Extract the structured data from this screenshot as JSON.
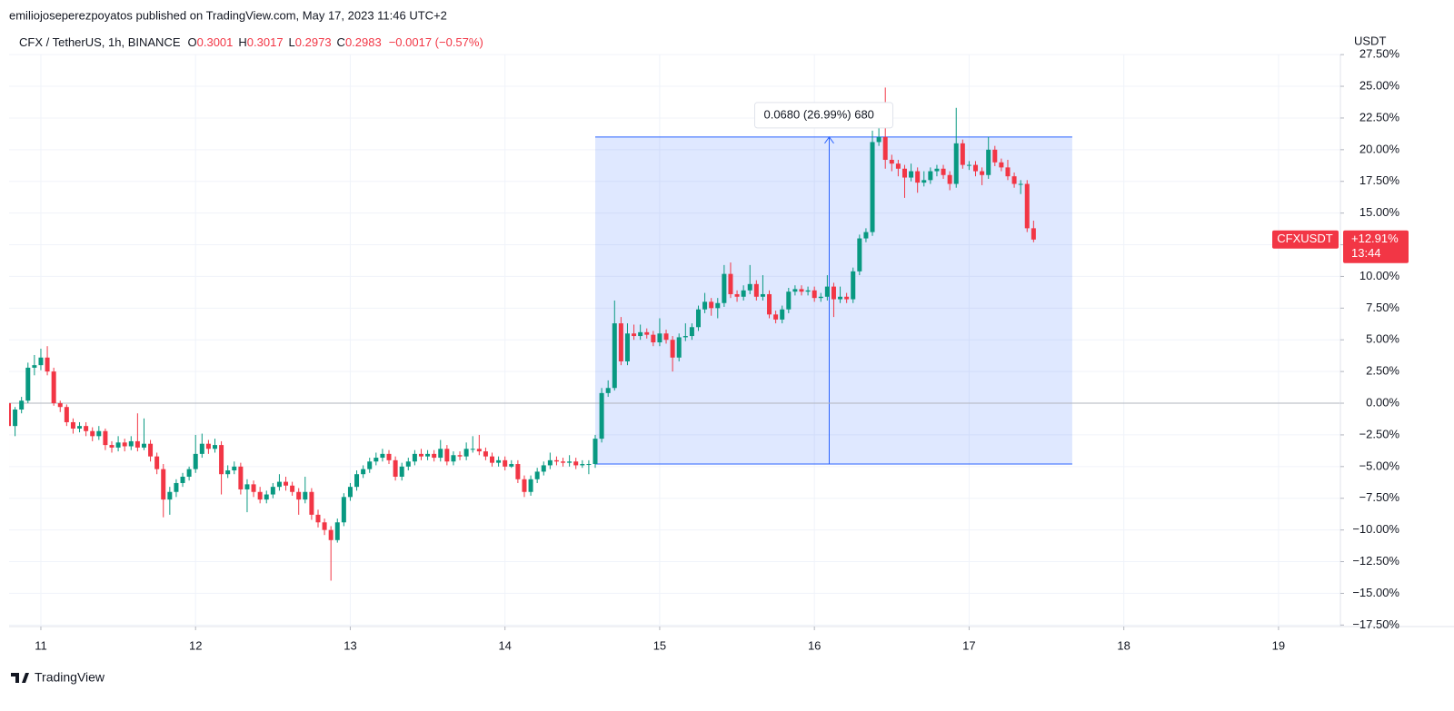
{
  "header": "emiliojoseperezpoyatos published on TradingView.com, May 17, 2023 11:46 UTC+2",
  "footer": "TradingView",
  "chart_data": {
    "type": "candlestick",
    "symbol": "CFX / TetherUS, 1h, BINANCE",
    "ohlc": [
      {
        "label": "O",
        "value": 0.3001
      },
      {
        "label": "H",
        "value": 0.3017
      },
      {
        "label": "L",
        "value": 0.2973
      },
      {
        "label": "C",
        "value": 0.2983
      }
    ],
    "change": "−0.0017 (−0.57%)",
    "unit": "USDT",
    "up_color": "#089981",
    "down_color": "#f23645",
    "grid": true,
    "xlim": [
      19.07,
      225.6
    ],
    "xticks": [
      {
        "value": 24,
        "label": "11"
      },
      {
        "value": 48,
        "label": "12"
      },
      {
        "value": 72,
        "label": "13"
      },
      {
        "value": 96,
        "label": "14"
      },
      {
        "value": 120,
        "label": "15"
      },
      {
        "value": 144,
        "label": "16"
      },
      {
        "value": 168,
        "label": "17"
      },
      {
        "value": 192,
        "label": "18"
      },
      {
        "value": 216,
        "label": "19"
      }
    ],
    "ylim": [
      -17.62,
      27.51
    ],
    "yticks": [
      {
        "value": 27.5,
        "label": "27.50%"
      },
      {
        "value": 25,
        "label": "25.00%"
      },
      {
        "value": 22.5,
        "label": "22.50%"
      },
      {
        "value": 20,
        "label": "20.00%"
      },
      {
        "value": 17.5,
        "label": "17.50%"
      },
      {
        "value": 15,
        "label": "15.00%"
      },
      {
        "value": 12.5,
        "label": "12.50%"
      },
      {
        "value": 10,
        "label": "10.00%"
      },
      {
        "value": 7.5,
        "label": "7.50%"
      },
      {
        "value": 5,
        "label": "5.00%"
      },
      {
        "value": 2.5,
        "label": "2.50%"
      },
      {
        "value": 0,
        "label": "0.00%"
      },
      {
        "value": -2.5,
        "label": "−2.50%"
      },
      {
        "value": -5,
        "label": "−5.00%"
      },
      {
        "value": -7.5,
        "label": "−7.50%"
      },
      {
        "value": -10,
        "label": "−10.00%"
      },
      {
        "value": -12.5,
        "label": "−12.50%"
      },
      {
        "value": -15,
        "label": "−15.00%"
      },
      {
        "value": -17.5,
        "label": "−17.50%"
      }
    ],
    "baseline": 0,
    "last": {
      "name": "CFXUSDT",
      "value": 12.91,
      "value_label": "+12.91%",
      "countdown": "13:44"
    },
    "range_box": {
      "from": 110,
      "to": 184,
      "low": -4.8,
      "high": 21.0,
      "arrow_at": 146.3,
      "label": "0.0680 (26.99%) 680",
      "color": "#2962ff"
    },
    "x": [
      19,
      20,
      21,
      22,
      23,
      24,
      25,
      26,
      27,
      28,
      29,
      30,
      31,
      32,
      33,
      34,
      35,
      36,
      37,
      38,
      39,
      40,
      41,
      42,
      43,
      44,
      45,
      46,
      47,
      48,
      49,
      50,
      51,
      52,
      53,
      54,
      55,
      56,
      57,
      58,
      59,
      60,
      61,
      62,
      63,
      64,
      65,
      66,
      67,
      68,
      69,
      70,
      71,
      72,
      73,
      74,
      75,
      76,
      77,
      78,
      79,
      80,
      81,
      82,
      83,
      84,
      85,
      86,
      87,
      88,
      89,
      90,
      91,
      92,
      93,
      94,
      95,
      96,
      97,
      98,
      99,
      100,
      101,
      102,
      103,
      104,
      105,
      106,
      107,
      108,
      109,
      110,
      111,
      112,
      113,
      114,
      115,
      116,
      117,
      118,
      119,
      120,
      121,
      122,
      123,
      124,
      125,
      126,
      127,
      128,
      129,
      130,
      131,
      132,
      133,
      134,
      135,
      136,
      137,
      138,
      139,
      140,
      141,
      142,
      143,
      144,
      145,
      146,
      147,
      148,
      149,
      150,
      151,
      152,
      153,
      154,
      155,
      156,
      157,
      158,
      159,
      160,
      161,
      162,
      163,
      164,
      165,
      166,
      167,
      168,
      169,
      170,
      171,
      172,
      173,
      174,
      175,
      176,
      177,
      178
    ],
    "candles": [
      [
        0,
        0.3,
        -6.3,
        -1.8
      ],
      [
        -1.8,
        -0.3,
        -2.6,
        -0.5
      ],
      [
        -0.5,
        0.5,
        -0.8,
        0.2
      ],
      [
        0.2,
        3.2,
        0,
        2.8
      ],
      [
        2.8,
        3.8,
        2.2,
        3.0
      ],
      [
        3.0,
        4.3,
        2.6,
        3.6
      ],
      [
        3.6,
        4.5,
        2.2,
        2.5
      ],
      [
        2.5,
        2.8,
        -0.2,
        0
      ],
      [
        0,
        0.2,
        -0.7,
        -0.3
      ],
      [
        -0.3,
        -0.1,
        -1.8,
        -1.5
      ],
      [
        -1.5,
        -1.2,
        -2.4,
        -2
      ],
      [
        -2,
        -1.5,
        -2.3,
        -1.8
      ],
      [
        -1.8,
        -1.5,
        -2.6,
        -2.2
      ],
      [
        -2.2,
        -1.9,
        -3,
        -2.6
      ],
      [
        -2.6,
        -1.8,
        -2.9,
        -2.2
      ],
      [
        -2.2,
        -2,
        -3.7,
        -3.3
      ],
      [
        -3.3,
        -3,
        -3.9,
        -3.5
      ],
      [
        -3.5,
        -2.6,
        -3.8,
        -3.1
      ],
      [
        -3.1,
        -2.8,
        -3.8,
        -3.4
      ],
      [
        -3.4,
        -2.6,
        -3.7,
        -3.0
      ],
      [
        -3,
        -0.8,
        -3.8,
        -3.5
      ],
      [
        -3.5,
        -1.2,
        -3.7,
        -3.2
      ],
      [
        -3.2,
        -2.9,
        -4.6,
        -4.2
      ],
      [
        -4.2,
        -3.9,
        -5.6,
        -5.2
      ],
      [
        -5.2,
        -4.8,
        -9,
        -7.6
      ],
      [
        -7.6,
        -6.6,
        -8.8,
        -7.0
      ],
      [
        -7,
        -6,
        -7.4,
        -6.3
      ],
      [
        -6.3,
        -5.5,
        -6.6,
        -5.8
      ],
      [
        -5.8,
        -5,
        -6.1,
        -5.2
      ],
      [
        -5.2,
        -2.5,
        -5.5,
        -4.0
      ],
      [
        -4,
        -2.4,
        -4.3,
        -3.2
      ],
      [
        -3.2,
        -2.9,
        -4,
        -3.6
      ],
      [
        -3.6,
        -2.8,
        -3.9,
        -3.3
      ],
      [
        -3.3,
        -3,
        -7.2,
        -5.6
      ],
      [
        -5.6,
        -4.9,
        -5.9,
        -5.3
      ],
      [
        -5.3,
        -4.6,
        -5.6,
        -5.0
      ],
      [
        -5,
        -4.7,
        -7.2,
        -6.8
      ],
      [
        -6.8,
        -6,
        -8.6,
        -6.4
      ],
      [
        -6.4,
        -6.1,
        -7.4,
        -7.0
      ],
      [
        -7,
        -6.6,
        -7.9,
        -7.6
      ],
      [
        -7.6,
        -6.9,
        -7.9,
        -7.2
      ],
      [
        -7.2,
        -6.3,
        -7.5,
        -6.6
      ],
      [
        -6.6,
        -5.6,
        -6.9,
        -6.2
      ],
      [
        -6.2,
        -5.8,
        -6.9,
        -6.5
      ],
      [
        -6.5,
        -6.2,
        -7.3,
        -7.0
      ],
      [
        -7,
        -6.7,
        -8.8,
        -7.6
      ],
      [
        -7.6,
        -5.8,
        -7.9,
        -7.0
      ],
      [
        -7,
        -6.7,
        -9.2,
        -8.8
      ],
      [
        -8.8,
        -8.4,
        -9.8,
        -9.4
      ],
      [
        -9.4,
        -9.1,
        -10.4,
        -10.0
      ],
      [
        -10,
        -9.7,
        -14,
        -10.8
      ],
      [
        -10.8,
        -9.1,
        -11,
        -9.4
      ],
      [
        -9.4,
        -7.1,
        -9.7,
        -7.4
      ],
      [
        -7.4,
        -6.3,
        -7.7,
        -6.6
      ],
      [
        -6.6,
        -5.3,
        -6.9,
        -5.6
      ],
      [
        -5.6,
        -4.9,
        -5.9,
        -5.2
      ],
      [
        -5.2,
        -4.3,
        -5.5,
        -4.6
      ],
      [
        -4.6,
        -3.9,
        -4.9,
        -4.3
      ],
      [
        -4.3,
        -3.6,
        -4.6,
        -4.0
      ],
      [
        -4,
        -3.7,
        -4.8,
        -4.5
      ],
      [
        -4.5,
        -4.2,
        -6.1,
        -5.8
      ],
      [
        -5.8,
        -4.7,
        -6.1,
        -5.0
      ],
      [
        -5,
        -4.3,
        -5.3,
        -4.6
      ],
      [
        -4.6,
        -3.7,
        -4.9,
        -4.0
      ],
      [
        -4,
        -3.6,
        -4.5,
        -4.2
      ],
      [
        -4.2,
        -3.7,
        -4.5,
        -4.0
      ],
      [
        -4,
        -3.7,
        -4.6,
        -4.3
      ],
      [
        -4.3,
        -2.9,
        -4.6,
        -3.6
      ],
      [
        -3.6,
        -3.3,
        -4.9,
        -4.6
      ],
      [
        -4.6,
        -3.8,
        -4.9,
        -4.1
      ],
      [
        -4.1,
        -3.8,
        -4.5,
        -4.2
      ],
      [
        -4.2,
        -3.1,
        -4.5,
        -3.6
      ],
      [
        -3.6,
        -2.6,
        -3.9,
        -3.6
      ],
      [
        -3.6,
        -2.5,
        -4.1,
        -3.8
      ],
      [
        -3.8,
        -3.5,
        -4.5,
        -4.2
      ],
      [
        -4.2,
        -3.9,
        -5,
        -4.7
      ],
      [
        -4.7,
        -4.2,
        -5,
        -4.5
      ],
      [
        -4.5,
        -4.2,
        -5.3,
        -5.0
      ],
      [
        -5,
        -4.5,
        -5.1,
        -4.8
      ],
      [
        -4.8,
        -4.5,
        -6.3,
        -6.0
      ],
      [
        -6,
        -5.7,
        -7.4,
        -7.0
      ],
      [
        -7,
        -5.7,
        -7.3,
        -6.0
      ],
      [
        -6,
        -5.1,
        -6.3,
        -5.4
      ],
      [
        -5.4,
        -4.6,
        -5.7,
        -4.9
      ],
      [
        -4.9,
        -3.9,
        -5.2,
        -4.5
      ],
      [
        -4.5,
        -4.2,
        -4.9,
        -4.6
      ],
      [
        -4.6,
        -4.3,
        -5.0,
        -4.7
      ],
      [
        -4.7,
        -4.1,
        -5.0,
        -4.6
      ],
      [
        -4.6,
        -4.3,
        -5.2,
        -4.9
      ],
      [
        -4.9,
        -4.5,
        -5.1,
        -4.8
      ],
      [
        -4.8,
        -4.5,
        -5.6,
        -4.8
      ],
      [
        -4.8,
        -2.5,
        -5.1,
        -2.8
      ],
      [
        -2.8,
        1.2,
        -3.1,
        0.8
      ],
      [
        0.8,
        1.8,
        0.5,
        1.2
      ],
      [
        1.2,
        8.1,
        1,
        6.3
      ],
      [
        6.3,
        6.8,
        3.0,
        3.3
      ],
      [
        3.3,
        6.3,
        3,
        5.5
      ],
      [
        5.5,
        6.2,
        5,
        5.3
      ],
      [
        5.3,
        6.2,
        5,
        5.6
      ],
      [
        5.6,
        5.9,
        5.1,
        5.4
      ],
      [
        5.4,
        5.7,
        4.5,
        4.8
      ],
      [
        4.8,
        6.7,
        4.5,
        5.5
      ],
      [
        5.5,
        5.8,
        4.7,
        5.0
      ],
      [
        5,
        5.3,
        2.5,
        3.6
      ],
      [
        3.6,
        5.5,
        3.3,
        5.2
      ],
      [
        5.2,
        6.3,
        4.9,
        5.3
      ],
      [
        5.3,
        6.3,
        5,
        6.0
      ],
      [
        6,
        7.7,
        5.7,
        7.4
      ],
      [
        7.4,
        8.7,
        7.1,
        8.0
      ],
      [
        8,
        8.3,
        6.9,
        7.5
      ],
      [
        7.5,
        8.3,
        6.7,
        7.9
      ],
      [
        7.9,
        10.9,
        7.6,
        10.2
      ],
      [
        10.2,
        11.1,
        8.3,
        8.6
      ],
      [
        8.6,
        8.9,
        8.0,
        8.4
      ],
      [
        8.4,
        9.3,
        8.1,
        8.9
      ],
      [
        8.9,
        10.9,
        8.6,
        9.4
      ],
      [
        9.4,
        9.7,
        8.1,
        8.4
      ],
      [
        8.4,
        10.1,
        8.1,
        8.6
      ],
      [
        8.6,
        8.9,
        6.7,
        7.0
      ],
      [
        7,
        7.3,
        6.3,
        6.6
      ],
      [
        6.6,
        7.7,
        6.3,
        7.4
      ],
      [
        7.4,
        9.1,
        7.1,
        8.8
      ],
      [
        8.8,
        9.3,
        8.5,
        9.0
      ],
      [
        9,
        9.3,
        8.5,
        8.8
      ],
      [
        8.8,
        9.2,
        8.5,
        8.9
      ],
      [
        8.9,
        9.2,
        8,
        8.3
      ],
      [
        8.3,
        8.7,
        8,
        8.4
      ],
      [
        8.4,
        10.1,
        8.1,
        9.2
      ],
      [
        9.2,
        9.5,
        6.8,
        8.2
      ],
      [
        8.2,
        9.2,
        7.9,
        8.4
      ],
      [
        8.4,
        8.7,
        7.9,
        8.2
      ],
      [
        8.2,
        10.7,
        7.9,
        10.4
      ],
      [
        10.4,
        13.3,
        10.1,
        13.0
      ],
      [
        13,
        13.8,
        12.7,
        13.5
      ],
      [
        13.5,
        21.5,
        13.2,
        20.6
      ],
      [
        20.6,
        22,
        20.3,
        21.0
      ],
      [
        21,
        24.9,
        18.5,
        19.2
      ],
      [
        19.2,
        19.6,
        18.3,
        18.9
      ],
      [
        18.9,
        19.2,
        17.9,
        18.5
      ],
      [
        18.5,
        18.8,
        16.2,
        17.8
      ],
      [
        17.8,
        18.9,
        17.5,
        18.3
      ],
      [
        18.3,
        18.6,
        16.6,
        17.4
      ],
      [
        17.4,
        18.3,
        17.1,
        17.6
      ],
      [
        17.6,
        18.6,
        17.3,
        18.3
      ],
      [
        18.3,
        18.8,
        17.9,
        18.5
      ],
      [
        18.5,
        18.8,
        17.7,
        18.0
      ],
      [
        18,
        18.3,
        16.8,
        17.3
      ],
      [
        17.3,
        23.3,
        17,
        20.5
      ],
      [
        20.5,
        20.8,
        18.5,
        18.8
      ],
      [
        18.8,
        19.1,
        18.4,
        18.8
      ],
      [
        18.8,
        19.1,
        17.9,
        18.3
      ],
      [
        18.3,
        18.6,
        17.2,
        18.0
      ],
      [
        18,
        21,
        17.7,
        20.0
      ],
      [
        20,
        20.3,
        18.7,
        19.0
      ],
      [
        19,
        19.3,
        18.3,
        18.6
      ],
      [
        18.6,
        19.2,
        17.6,
        17.9
      ],
      [
        17.9,
        18.2,
        17,
        17.3
      ],
      [
        17.3,
        17.6,
        16.5,
        17.3
      ],
      [
        17.3,
        17.6,
        13.5,
        13.8
      ],
      [
        13.8,
        14.4,
        12.7,
        12.91
      ]
    ]
  }
}
